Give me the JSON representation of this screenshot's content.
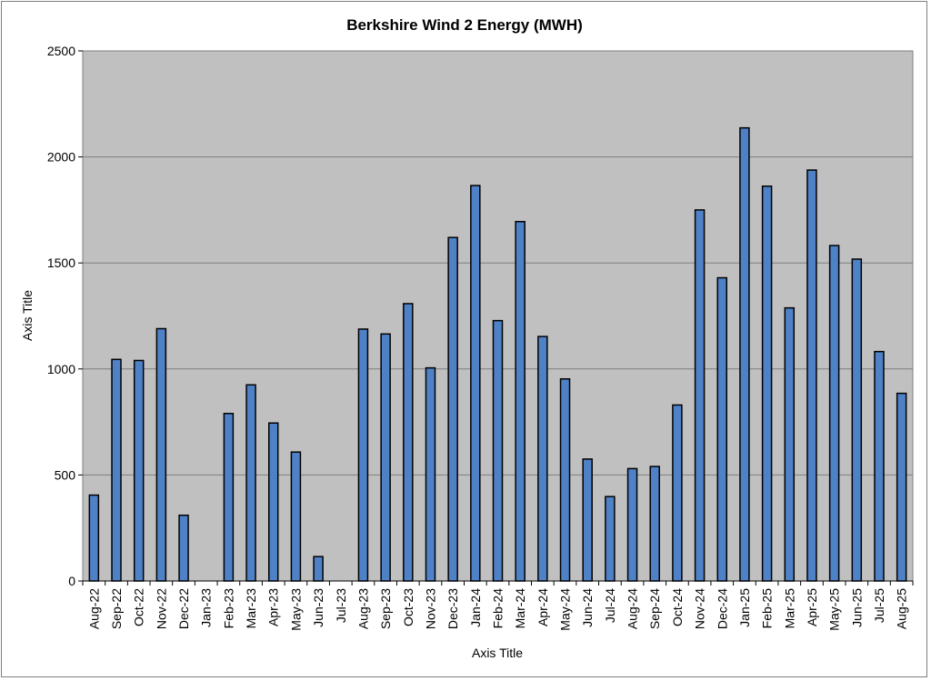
{
  "chart_data": {
    "type": "bar",
    "title": "Berkshire Wind 2 Energy (MWH)",
    "xlabel": "Axis Title",
    "ylabel": "Axis Title",
    "ylim": [
      0,
      2500
    ],
    "yticks": [
      0,
      500,
      1000,
      1500,
      2000,
      2500
    ],
    "grid": true,
    "legend": "none",
    "colors": {
      "bar_fill": "#4f81c7",
      "bar_stroke": "#000000",
      "plot_bg": "#c0c0c0",
      "grid": "#7f7f7f"
    },
    "categories": [
      "Aug-22",
      "Sep-22",
      "Oct-22",
      "Nov-22",
      "Dec-22",
      "Jan-23",
      "Feb-23",
      "Mar-23",
      "Apr-23",
      "May-23",
      "Jun-23",
      "Jul-23",
      "Aug-23",
      "Sep-23",
      "Oct-23",
      "Nov-23",
      "Dec-23",
      "Jan-24",
      "Feb-24",
      "Mar-24",
      "Apr-24",
      "May-24",
      "Jun-24",
      "Jul-24",
      "Aug-24",
      "Sep-24",
      "Oct-24",
      "Nov-24",
      "Dec-24",
      "Jan-25",
      "Feb-25",
      "Mar-25",
      "Apr-25",
      "May-25",
      "Jun-25",
      "Jul-25",
      "Aug-25"
    ],
    "values": [
      405,
      1045,
      1040,
      1190,
      310,
      0,
      790,
      925,
      745,
      608,
      115,
      0,
      1188,
      1165,
      1308,
      1005,
      1620,
      1865,
      1228,
      1695,
      1153,
      953,
      575,
      398,
      530,
      540,
      830,
      1750,
      1430,
      2137,
      1862,
      1288,
      1938,
      1582,
      1518,
      1082,
      885
    ]
  }
}
